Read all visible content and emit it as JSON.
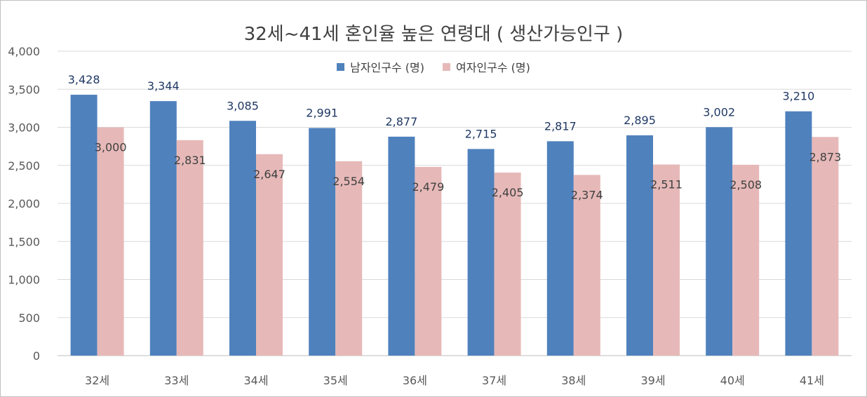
{
  "chart_data": {
    "type": "bar",
    "title": "32세~41세 혼인율 높은 연령대 ( 생산가능인구 )",
    "categories": [
      "32세",
      "33세",
      "34세",
      "35세",
      "36세",
      "37세",
      "38세",
      "39세",
      "40세",
      "41세"
    ],
    "series": [
      {
        "name": "남자인구수 (명)",
        "color": "#4f81bd",
        "values": [
          3428,
          3344,
          3085,
          2991,
          2877,
          2715,
          2817,
          2895,
          3002,
          3210
        ]
      },
      {
        "name": "여자인구수 (명)",
        "color": "#e6b9b8",
        "values": [
          3000,
          2831,
          2647,
          2554,
          2479,
          2405,
          2374,
          2511,
          2508,
          2873
        ]
      }
    ],
    "yticks": [
      "0",
      "500",
      "1,000",
      "1,500",
      "2,000",
      "2,500",
      "3,000",
      "3,500",
      "4,000"
    ],
    "ylim": [
      0,
      4000
    ],
    "grid": true,
    "legend_position": "top"
  }
}
